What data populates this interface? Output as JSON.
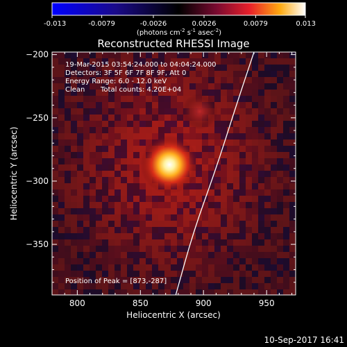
{
  "chart_data": {
    "type": "heatmap",
    "title": "Reconstructed RHESSI Image",
    "xlabel": "Heliocentric X (arcsec)",
    "ylabel": "Heliocentric Y (arcsec)",
    "xlim": [
      780,
      973
    ],
    "ylim": [
      -390,
      -198
    ],
    "x_ticks": [
      800,
      850,
      900,
      950
    ],
    "y_ticks": [
      -200,
      -250,
      -300,
      -350
    ],
    "colorbar": {
      "min": -0.013,
      "max": 0.013,
      "ticks": [
        "-0.013",
        "-0.0079",
        "-0.0026",
        "0.0026",
        "0.0079",
        "0.013"
      ],
      "label_main": "(photons cm",
      "label_exp1": "-2",
      "label_mid1": " s",
      "label_exp2": "-1",
      "label_mid2": " asec",
      "label_exp3": "-2",
      "label_end": ")"
    },
    "annotations": {
      "line1": "19-Mar-2015 03:54:24.000 to 04:04:24.000",
      "line2": "Detectors: 3F 5F 6F 7F 8F 9F, Att 0",
      "line3": "Energy Range: 6.0 - 12.0 keV",
      "line4_a": "Clean",
      "line4_b": "Total counts: 4.20E+04",
      "peak_text": "Position of Peak = [873,-287]"
    },
    "peak": [
      873,
      -287
    ],
    "secondary_source": [
      897,
      -245
    ],
    "limb": [
      [
        940,
        -198
      ],
      [
        926,
        -240
      ],
      [
        910,
        -290
      ],
      [
        892,
        -340
      ],
      [
        878,
        -390
      ]
    ],
    "footer": "10-Sep-2017 16:41"
  }
}
